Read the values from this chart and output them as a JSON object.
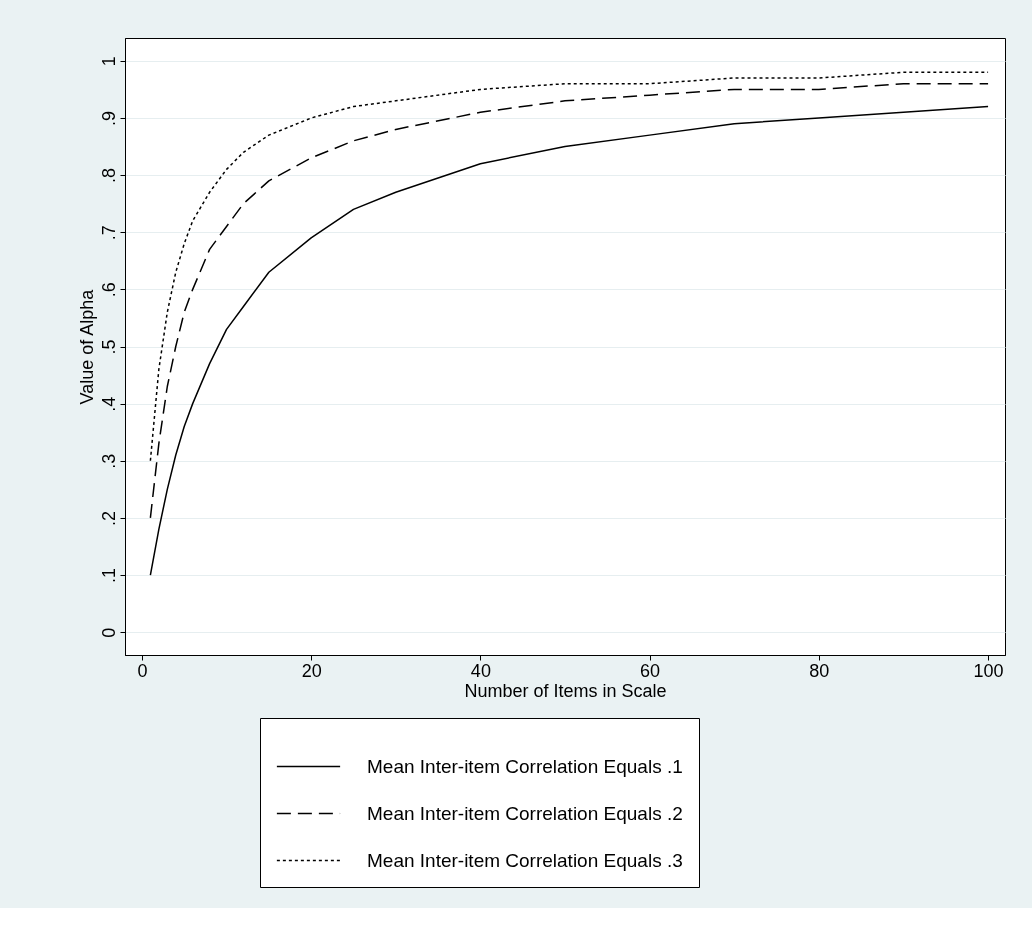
{
  "chart_data": {
    "type": "line",
    "xlabel": "Number of Items in Scale",
    "ylabel": "Value of Alpha",
    "x": [
      1,
      2,
      3,
      4,
      5,
      6,
      8,
      10,
      12,
      15,
      20,
      25,
      30,
      40,
      50,
      60,
      70,
      80,
      90,
      100
    ],
    "series": [
      {
        "name": "Mean Inter-item Correlation Equals .1",
        "color": "#000000",
        "line_style": "solid",
        "values": [
          0.1,
          0.18,
          0.25,
          0.31,
          0.36,
          0.4,
          0.47,
          0.53,
          0.57,
          0.63,
          0.69,
          0.74,
          0.77,
          0.82,
          0.85,
          0.87,
          0.89,
          0.9,
          0.91,
          0.92
        ]
      },
      {
        "name": "Mean Inter-item Correlation Equals .2",
        "color": "#000000",
        "line_style": "dashed",
        "values": [
          0.2,
          0.33,
          0.43,
          0.5,
          0.56,
          0.6,
          0.67,
          0.71,
          0.75,
          0.79,
          0.83,
          0.86,
          0.88,
          0.91,
          0.93,
          0.94,
          0.95,
          0.95,
          0.96,
          0.96
        ]
      },
      {
        "name": "Mean Inter-item Correlation Equals .3",
        "color": "#000000",
        "line_style": "dotted",
        "values": [
          0.3,
          0.46,
          0.56,
          0.63,
          0.68,
          0.72,
          0.77,
          0.81,
          0.84,
          0.87,
          0.9,
          0.92,
          0.93,
          0.95,
          0.96,
          0.96,
          0.97,
          0.97,
          0.98,
          0.98
        ]
      }
    ],
    "xlim": [
      -2,
      102
    ],
    "xticks": [
      0,
      20,
      40,
      60,
      80,
      100
    ],
    "ylim": [
      -0.04,
      1.04
    ],
    "yticks": [
      0,
      {
        "value": 0.1,
        "label": ".1"
      },
      {
        "value": 0.2,
        "label": ".2"
      },
      {
        "value": 0.3,
        "label": ".3"
      },
      {
        "value": 0.4,
        "label": ".4"
      },
      {
        "value": 0.5,
        "label": ".5"
      },
      {
        "value": 0.6,
        "label": ".6"
      },
      {
        "value": 0.7,
        "label": ".7"
      },
      {
        "value": 0.8,
        "label": ".8"
      },
      {
        "value": 0.9,
        "label": ".9"
      },
      1
    ],
    "grid": "y",
    "legend": "bottom"
  }
}
